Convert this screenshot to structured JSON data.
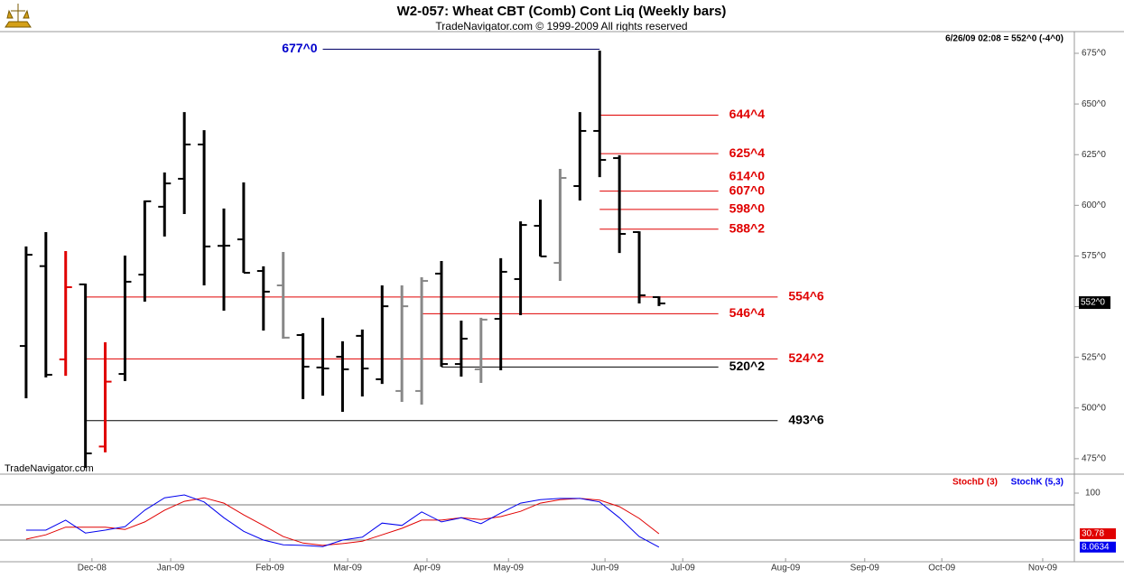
{
  "header": {
    "title": "W2-057:  Wheat CBT (Comb) Cont Liq  (Weekly bars)",
    "subtitle": "TradeNavigator.com © 1999-2009 All rights reserved",
    "quote": "6/26/09 02:08 = 552^0 (-4^0)",
    "watermark": "TradeNavigator.com"
  },
  "chart_data": [
    {
      "type": "ohlc",
      "xlim": [
        -1.32,
        53.0
      ],
      "ylim": [
        469.6,
        685.7
      ],
      "yticks": [
        {
          "value": 475,
          "label": "475^0"
        },
        {
          "value": 500,
          "label": "500^0"
        },
        {
          "value": 525,
          "label": "525^0"
        },
        {
          "value": 550,
          "label": "550^0"
        },
        {
          "value": 575,
          "label": "575^0"
        },
        {
          "value": 600,
          "label": "600^0"
        },
        {
          "value": 625,
          "label": "625^0"
        },
        {
          "value": 650,
          "label": "650^0"
        },
        {
          "value": 675,
          "label": "675^0"
        }
      ],
      "open": [
        530.6,
        570,
        524,
        561,
        481,
        516.8,
        565.8,
        599.3,
        613.1,
        630,
        580,
        583.2,
        567.6,
        560.5,
        536,
        520,
        525.3,
        535.6,
        514.2,
        508.4,
        508.4,
        566.3,
        521.7,
        519.1,
        544,
        563.6,
        589.9,
        571.6,
        609.5,
        636.7,
        623.3,
        586.8,
        554.7
      ],
      "high": [
        579.7,
        586.8,
        577.4,
        561.4,
        532.4,
        575.2,
        602.4,
        616.2,
        646,
        637.1,
        598.4,
        611.3,
        569.9,
        577,
        536.9,
        544.5,
        532.9,
        538.7,
        560.5,
        560.5,
        564.5,
        572.5,
        543.1,
        544.5,
        573.9,
        592.1,
        602.8,
        618,
        646,
        676.3,
        624.7,
        587.2,
        555.1
      ],
      "low": [
        504.8,
        515.1,
        515.9,
        470.5,
        478.1,
        513.3,
        552.5,
        584.6,
        595.7,
        560.5,
        548,
        566.7,
        538.2,
        534.2,
        504.4,
        506.1,
        498.1,
        505.7,
        511.9,
        503,
        501.7,
        520.4,
        515.5,
        512.4,
        518.6,
        545.8,
        574.8,
        562.7,
        602.4,
        613.9,
        576.5,
        551.6,
        550.3
      ],
      "close": [
        575.6,
        516.4,
        559.6,
        477.6,
        513,
        562.3,
        602,
        610.8,
        630,
        579.7,
        580.1,
        566.7,
        557.4,
        534.7,
        520.4,
        519.5,
        519.1,
        519.5,
        550.2,
        550.2,
        562.7,
        521.7,
        534.2,
        543.6,
        567.2,
        590.3,
        574.8,
        613.5,
        636.7,
        622.4,
        585.9,
        555.6,
        551.6
      ],
      "colors": [
        "#000000",
        "#000000",
        "#e00000",
        "#000000",
        "#e00000",
        "#000000",
        "#000000",
        "#000000",
        "#000000",
        "#000000",
        "#000000",
        "#000000",
        "#000000",
        "#888888",
        "#000000",
        "#000000",
        "#000000",
        "#000000",
        "#000000",
        "#888888",
        "#888888",
        "#000000",
        "#000000",
        "#888888",
        "#000000",
        "#000000",
        "#000000",
        "#888888",
        "#000000",
        "#000000",
        "#000000",
        "#000000",
        "#000000"
      ],
      "last": {
        "value": 552,
        "label": "552^0"
      },
      "levels": [
        {
          "value": 677,
          "label": "677^0",
          "color": "#0000cc",
          "line_color": "#000066",
          "from": 15,
          "to": 29,
          "side": "left"
        },
        {
          "value": 644.5,
          "label": "644^4",
          "color": "#e00000",
          "line_color": "#e00000",
          "from": 29,
          "to": 35
        },
        {
          "value": 625.5,
          "label": "625^4",
          "color": "#e00000",
          "line_color": "#e00000",
          "from": 29,
          "to": 35
        },
        {
          "value": 614,
          "label": "614^0",
          "color": "#e00000",
          "line": false,
          "to": 35
        },
        {
          "value": 607,
          "label": "607^0",
          "color": "#e00000",
          "line_color": "#e00000",
          "from": 29,
          "to": 35
        },
        {
          "value": 598,
          "label": "598^0",
          "color": "#e00000",
          "line_color": "#e00000",
          "from": 29,
          "to": 35
        },
        {
          "value": 588.25,
          "label": "588^2",
          "color": "#e00000",
          "line_color": "#e00000",
          "from": 29,
          "to": 35
        },
        {
          "value": 554.75,
          "label": "554^6",
          "color": "#e00000",
          "line_color": "#e00000",
          "from": 3,
          "to": 38
        },
        {
          "value": 546.5,
          "label": "546^4",
          "color": "#e00000",
          "line_color": "#e00000",
          "from": 20,
          "to": 35
        },
        {
          "value": 524.25,
          "label": "524^2",
          "color": "#e00000",
          "line_color": "#e00000",
          "from": 3,
          "to": 38
        },
        {
          "value": 520.25,
          "label": "520^2",
          "color": "#000000",
          "line_color": "#000000",
          "from": 21,
          "to": 35
        },
        {
          "value": 493.75,
          "label": "493^6",
          "color": "#000000",
          "line_color": "#000000",
          "from": 3,
          "to": 38
        }
      ]
    },
    {
      "type": "line",
      "xlim": [
        -1.32,
        53.0
      ],
      "ylim": [
        -16.9,
        127.7
      ],
      "yticks": [
        100
      ],
      "levels": [
        80,
        20
      ],
      "xticks": [
        {
          "value": 3.33,
          "label": "Dec-08"
        },
        {
          "value": 7.31,
          "label": "Jan-09"
        },
        {
          "value": 12.33,
          "label": "Feb-09"
        },
        {
          "value": 16.26,
          "label": "Mar-09"
        },
        {
          "value": 20.27,
          "label": "Apr-09"
        },
        {
          "value": 24.39,
          "label": "May-09"
        },
        {
          "value": 29.27,
          "label": "Jun-09"
        },
        {
          "value": 33.2,
          "label": "Jul-09"
        },
        {
          "value": 38.4,
          "label": "Aug-09"
        },
        {
          "value": 42.4,
          "label": "Sep-09"
        },
        {
          "value": 46.3,
          "label": "Oct-09"
        },
        {
          "value": 51.4,
          "label": "Nov-09"
        }
      ],
      "series": [
        {
          "name": "StochD (3)",
          "color": "#e00000",
          "values": [
            21.5,
            29,
            42,
            42,
            42,
            38,
            51,
            71,
            86,
            92,
            83,
            63,
            45,
            26,
            15,
            11,
            14,
            18,
            29,
            40,
            54,
            54,
            58,
            55,
            60,
            69,
            83,
            89,
            91,
            88,
            77,
            57,
            30.78
          ]
        },
        {
          "name": "StochK (5,3)",
          "color": "#0000ee",
          "values": [
            36.9,
            37,
            54,
            32,
            37,
            43,
            71,
            92,
            97,
            85,
            58,
            35,
            20,
            12,
            11,
            9,
            20,
            25,
            49,
            45,
            68,
            51,
            58,
            48,
            66,
            83,
            89,
            91,
            91,
            85,
            58,
            26,
            8.0634
          ]
        }
      ]
    }
  ]
}
